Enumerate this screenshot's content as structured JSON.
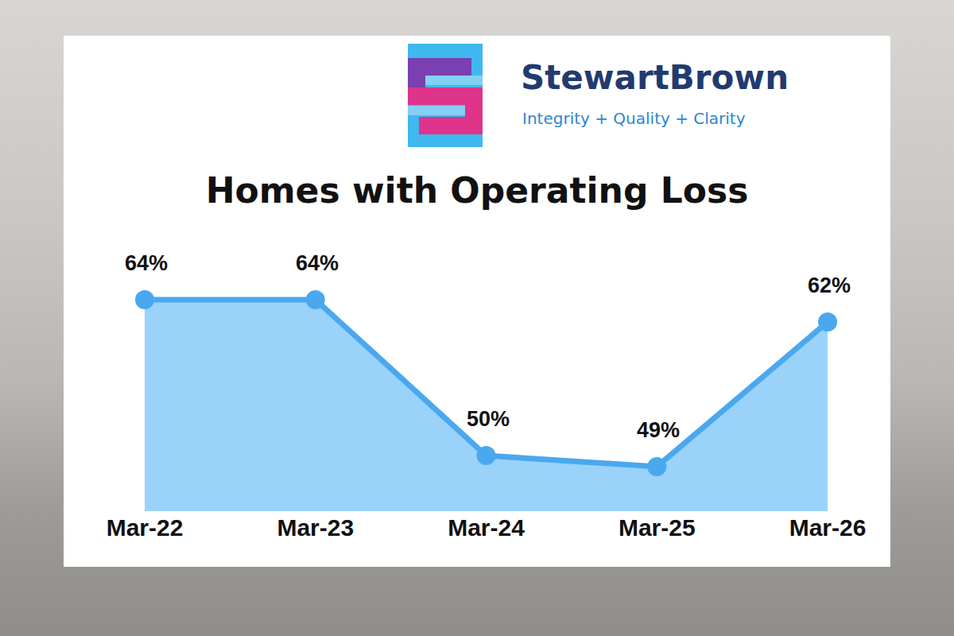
{
  "chart_data": {
    "type": "area",
    "title": "Homes with Operating Loss",
    "categories": [
      "Mar-22",
      "Mar-23",
      "Mar-24",
      "Mar-25",
      "Mar-26"
    ],
    "values": [
      64,
      64,
      50,
      49,
      62
    ],
    "value_labels": [
      "64%",
      "64%",
      "50%",
      "49%",
      "62%"
    ],
    "data_labels": true,
    "color": "#4aa8ef",
    "ylim": [
      45,
      68
    ],
    "tick_labels": "x",
    "grid": false,
    "annotations": [
      "StewartBrown",
      "Integrity + Quality + Clarity"
    ]
  }
}
